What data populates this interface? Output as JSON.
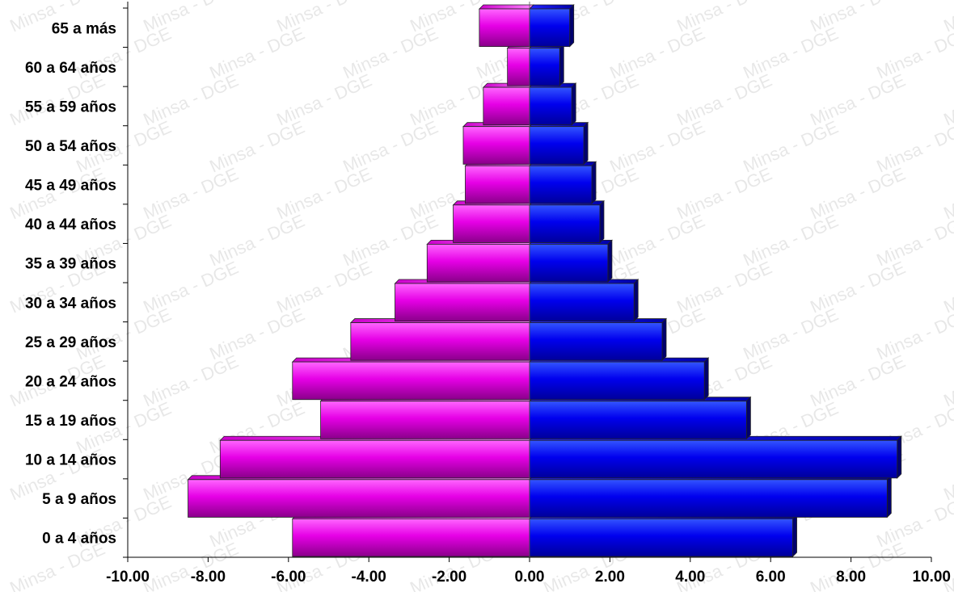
{
  "chart_data": {
    "type": "bar",
    "orientation": "horizontal",
    "subtype": "population-pyramid",
    "title": "",
    "xlabel": "",
    "ylabel": "",
    "categories": [
      "0 a 4 años",
      "5 a 9 años",
      "10 a 14 años",
      "15 a 19 años",
      "20 a 24 años",
      "25 a 29 años",
      "30 a 34 años",
      "35 a 39 años",
      "40 a 44 años",
      "45 a 49 años",
      "50 a 54 años",
      "55 a 59 años",
      "60 a 64 años",
      "65 a más"
    ],
    "series": [
      {
        "color": "#ff00ff",
        "values": [
          -5.9,
          -8.5,
          -7.7,
          -5.2,
          -5.9,
          -4.45,
          -3.35,
          -2.55,
          -1.9,
          -1.6,
          -1.65,
          -1.15,
          -0.55,
          -1.25
        ]
      },
      {
        "color": "#0000ff",
        "values": [
          6.55,
          8.9,
          9.15,
          5.4,
          4.35,
          3.3,
          2.6,
          1.95,
          1.75,
          1.55,
          1.35,
          1.05,
          0.75,
          1.0
        ]
      }
    ],
    "xlim": [
      -10,
      10
    ],
    "xticks": [
      "-10.00",
      "-8.00",
      "-6.00",
      "-4.00",
      "-2.00",
      "0.00",
      "2.00",
      "4.00",
      "6.00",
      "8.00",
      "10.00"
    ],
    "grid": false,
    "legend": "none",
    "watermark": "Minsa - DGE"
  }
}
